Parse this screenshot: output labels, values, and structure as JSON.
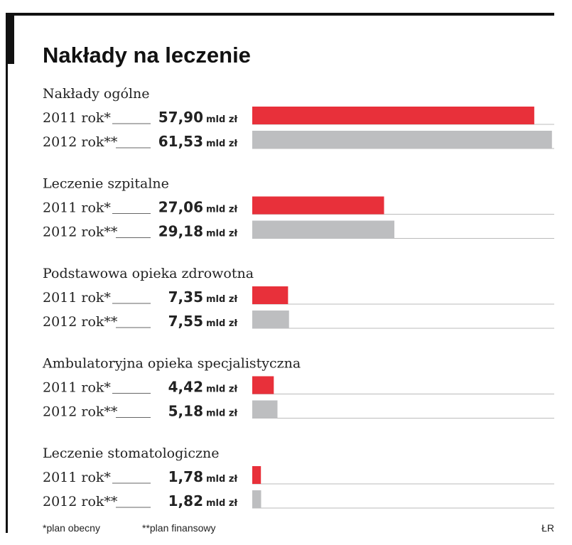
{
  "chart_data": {
    "type": "bar",
    "orientation": "horizontal",
    "title": "Nakłady na leczenie",
    "categories": [
      "Nakłady ogólne",
      "Leczenie szpitalne",
      "Podstawowa opieka zdrowotna",
      "Ambulatoryjna opieka specjalistyczna",
      "Leczenie stomatologiczne"
    ],
    "series": [
      {
        "name": "2011 rok*",
        "color": "#e8303a",
        "values": [
          57.9,
          27.06,
          7.35,
          4.42,
          1.78
        ],
        "value_labels": [
          "57,90",
          "27,06",
          "7,35",
          "4,42",
          "1,78"
        ]
      },
      {
        "name": "2012 rok**",
        "color": "#bdbec0",
        "values": [
          61.53,
          29.18,
          7.55,
          5.18,
          1.82
        ],
        "value_labels": [
          "61,53",
          "29,18",
          "7,55",
          "5,18",
          "1,82"
        ]
      }
    ],
    "unit": "mld zł",
    "xlim": [
      0,
      62
    ],
    "footnotes": [
      "*plan obecny",
      "**plan finansowy"
    ],
    "source": "ŁR"
  }
}
